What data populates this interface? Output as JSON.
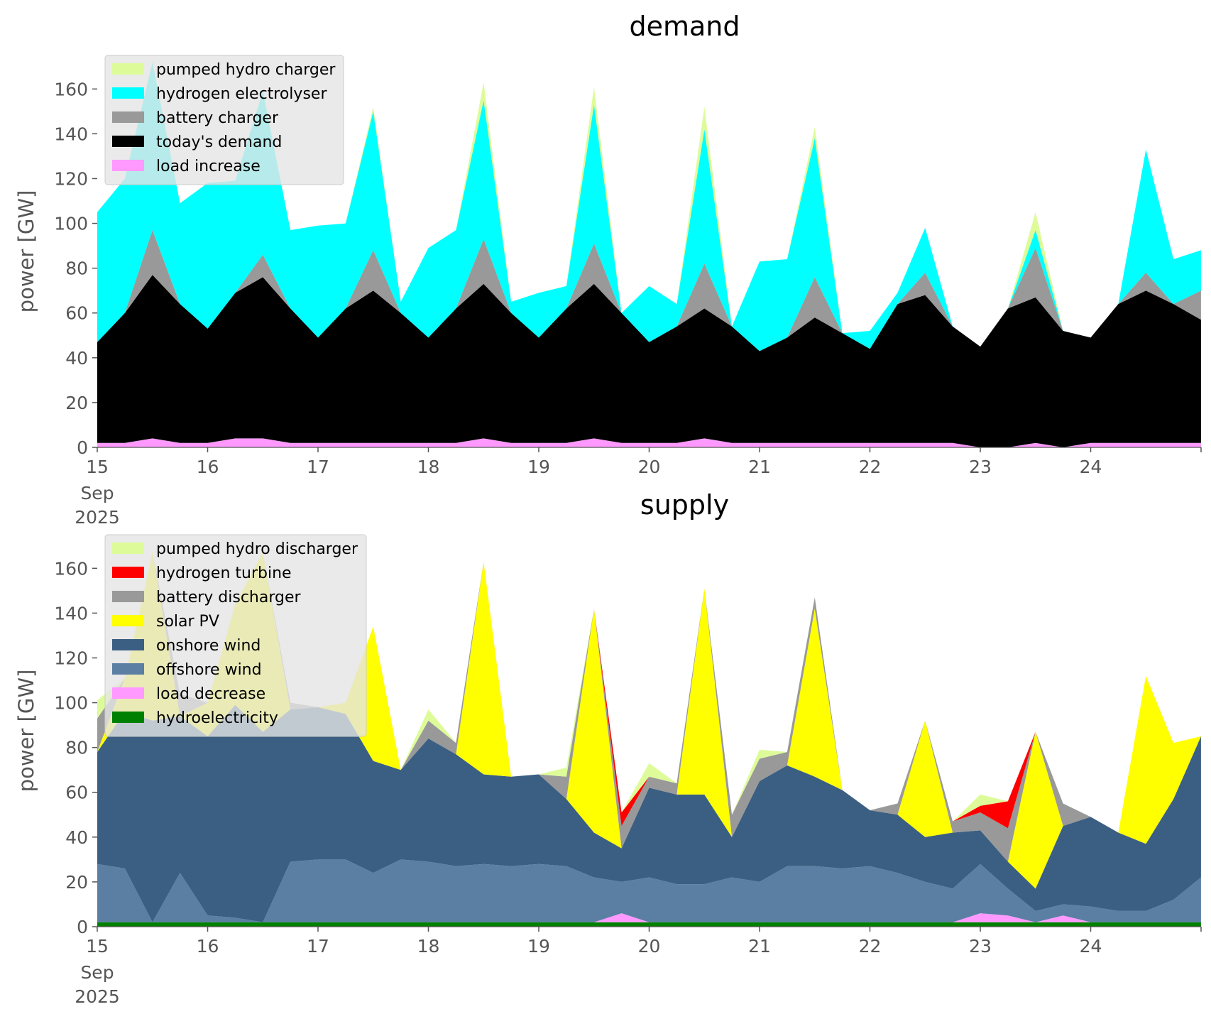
{
  "chart_data": [
    {
      "type": "area",
      "title": "demand",
      "ylabel": "power [GW]",
      "xlabel": "",
      "ylim": [
        0,
        175
      ],
      "xlim": [
        "2025-09-15 00:00",
        "2025-09-24 23:59"
      ],
      "grid": false,
      "legend_position": "top-left",
      "x_ticks": [
        "15",
        "16",
        "17",
        "18",
        "19",
        "20",
        "21",
        "22",
        "23",
        "24"
      ],
      "x_tick_sub": [
        "Sep",
        "2025"
      ],
      "y_ticks": [
        0,
        20,
        40,
        60,
        80,
        100,
        120,
        140,
        160
      ],
      "x": [
        "2025-09-15 00:00",
        "2025-09-15 06:00",
        "2025-09-15 12:00",
        "2025-09-15 18:00",
        "2025-09-16 00:00",
        "2025-09-16 06:00",
        "2025-09-16 12:00",
        "2025-09-16 18:00",
        "2025-09-17 00:00",
        "2025-09-17 06:00",
        "2025-09-17 12:00",
        "2025-09-17 18:00",
        "2025-09-18 00:00",
        "2025-09-18 06:00",
        "2025-09-18 12:00",
        "2025-09-18 18:00",
        "2025-09-19 00:00",
        "2025-09-19 06:00",
        "2025-09-19 12:00",
        "2025-09-19 18:00",
        "2025-09-20 00:00",
        "2025-09-20 06:00",
        "2025-09-20 12:00",
        "2025-09-20 18:00",
        "2025-09-21 00:00",
        "2025-09-21 06:00",
        "2025-09-21 12:00",
        "2025-09-21 18:00",
        "2025-09-22 00:00",
        "2025-09-22 06:00",
        "2025-09-22 12:00",
        "2025-09-22 18:00",
        "2025-09-23 00:00",
        "2025-09-23 06:00",
        "2025-09-23 12:00",
        "2025-09-23 18:00",
        "2025-09-24 00:00",
        "2025-09-24 06:00",
        "2025-09-24 12:00",
        "2025-09-24 18:00",
        "2025-09-24 23:59"
      ],
      "series": [
        {
          "name": "load increase",
          "color": "#ff99ff",
          "values": [
            2,
            2,
            4,
            2,
            2,
            4,
            4,
            2,
            2,
            2,
            2,
            2,
            2,
            2,
            4,
            2,
            2,
            2,
            4,
            2,
            2,
            2,
            4,
            2,
            2,
            2,
            2,
            2,
            2,
            2,
            2,
            2,
            0,
            0,
            2,
            0,
            2,
            2,
            2,
            2,
            2
          ]
        },
        {
          "name": "today's demand",
          "color": "#000000",
          "values": [
            45,
            58,
            73,
            62,
            51,
            65,
            72,
            60,
            47,
            60,
            68,
            58,
            47,
            60,
            69,
            58,
            47,
            60,
            69,
            58,
            45,
            52,
            58,
            52,
            41,
            47,
            56,
            49,
            42,
            62,
            66,
            52,
            45,
            62,
            65,
            52,
            47,
            62,
            68,
            62,
            55
          ]
        },
        {
          "name": "battery charger",
          "color": "#999999",
          "values": [
            0,
            0,
            20,
            0,
            0,
            0,
            10,
            0,
            0,
            0,
            18,
            0,
            0,
            0,
            20,
            0,
            0,
            0,
            18,
            0,
            0,
            0,
            20,
            0,
            0,
            0,
            18,
            0,
            0,
            0,
            10,
            0,
            0,
            0,
            22,
            0,
            0,
            0,
            8,
            0,
            13
          ]
        },
        {
          "name": "hydrogen electrolyser",
          "color": "#00ffff",
          "values": [
            58,
            60,
            75,
            45,
            65,
            50,
            73,
            35,
            50,
            38,
            62,
            5,
            40,
            35,
            62,
            5,
            20,
            10,
            62,
            0,
            25,
            10,
            60,
            0,
            40,
            35,
            62,
            0,
            8,
            5,
            20,
            0,
            0,
            0,
            8,
            0,
            0,
            0,
            55,
            20,
            18
          ]
        },
        {
          "name": "pumped hydro charger",
          "color": "#ddfc99",
          "values": [
            0,
            0,
            0,
            0,
            0,
            0,
            0,
            0,
            0,
            0,
            2,
            0,
            0,
            0,
            8,
            0,
            0,
            0,
            8,
            0,
            0,
            0,
            10,
            0,
            0,
            0,
            5,
            0,
            0,
            0,
            0,
            0,
            0,
            0,
            8,
            0,
            0,
            0,
            0,
            0,
            0
          ]
        }
      ]
    },
    {
      "type": "area",
      "title": "supply",
      "ylabel": "power [GW]",
      "xlabel": "",
      "ylim": [
        0,
        175
      ],
      "xlim": [
        "2025-09-15 00:00",
        "2025-09-24 23:59"
      ],
      "grid": false,
      "legend_position": "top-left",
      "x_ticks": [
        "15",
        "16",
        "17",
        "18",
        "19",
        "20",
        "21",
        "22",
        "23",
        "24"
      ],
      "x_tick_sub": [
        "Sep",
        "2025"
      ],
      "y_ticks": [
        0,
        20,
        40,
        60,
        80,
        100,
        120,
        140,
        160
      ],
      "x": [
        "2025-09-15 00:00",
        "2025-09-15 06:00",
        "2025-09-15 12:00",
        "2025-09-15 18:00",
        "2025-09-16 00:00",
        "2025-09-16 06:00",
        "2025-09-16 12:00",
        "2025-09-16 18:00",
        "2025-09-17 00:00",
        "2025-09-17 06:00",
        "2025-09-17 12:00",
        "2025-09-17 18:00",
        "2025-09-18 00:00",
        "2025-09-18 06:00",
        "2025-09-18 12:00",
        "2025-09-18 18:00",
        "2025-09-19 00:00",
        "2025-09-19 06:00",
        "2025-09-19 12:00",
        "2025-09-19 18:00",
        "2025-09-20 00:00",
        "2025-09-20 06:00",
        "2025-09-20 12:00",
        "2025-09-20 18:00",
        "2025-09-21 00:00",
        "2025-09-21 06:00",
        "2025-09-21 12:00",
        "2025-09-21 18:00",
        "2025-09-22 00:00",
        "2025-09-22 06:00",
        "2025-09-22 12:00",
        "2025-09-22 18:00",
        "2025-09-23 00:00",
        "2025-09-23 06:00",
        "2025-09-23 12:00",
        "2025-09-23 18:00",
        "2025-09-24 00:00",
        "2025-09-24 06:00",
        "2025-09-24 12:00",
        "2025-09-24 18:00",
        "2025-09-24 23:59"
      ],
      "series": [
        {
          "name": "hydroelectricity",
          "color": "#008000",
          "values": [
            2,
            2,
            2,
            2,
            2,
            2,
            2,
            2,
            2,
            2,
            2,
            2,
            2,
            2,
            2,
            2,
            2,
            2,
            2,
            2,
            2,
            2,
            2,
            2,
            2,
            2,
            2,
            2,
            2,
            2,
            2,
            2,
            2,
            2,
            2,
            2,
            2,
            2,
            2,
            2,
            2
          ]
        },
        {
          "name": "load decrease",
          "color": "#ff99ff",
          "values": [
            0,
            0,
            0,
            0,
            0,
            0,
            0,
            0,
            0,
            0,
            0,
            0,
            0,
            0,
            0,
            0,
            0,
            0,
            0,
            4,
            0,
            0,
            0,
            0,
            0,
            0,
            0,
            0,
            0,
            0,
            0,
            0,
            4,
            3,
            0,
            3,
            0,
            0,
            0,
            0,
            0
          ]
        },
        {
          "name": "offshore wind",
          "color": "#5b7fa3",
          "values": [
            26,
            24,
            0,
            22,
            3,
            2,
            0,
            27,
            28,
            28,
            22,
            28,
            27,
            25,
            26,
            25,
            26,
            25,
            20,
            14,
            20,
            17,
            17,
            20,
            18,
            25,
            25,
            24,
            25,
            22,
            18,
            15,
            22,
            12,
            5,
            5,
            7,
            5,
            5,
            10,
            20
          ]
        },
        {
          "name": "onshore wind",
          "color": "#3b5f82",
          "values": [
            50,
            70,
            90,
            70,
            80,
            95,
            85,
            68,
            68,
            65,
            50,
            40,
            55,
            50,
            40,
            40,
            40,
            30,
            20,
            15,
            40,
            40,
            40,
            18,
            45,
            45,
            40,
            35,
            25,
            26,
            20,
            25,
            15,
            12,
            10,
            35,
            40,
            35,
            30,
            45,
            63
          ]
        },
        {
          "name": "solar PV",
          "color": "#ffff00",
          "values": [
            0,
            15,
            75,
            0,
            15,
            45,
            80,
            0,
            0,
            5,
            60,
            0,
            0,
            0,
            95,
            0,
            0,
            0,
            100,
            0,
            0,
            0,
            92,
            0,
            0,
            0,
            75,
            0,
            0,
            0,
            52,
            0,
            0,
            0,
            70,
            0,
            0,
            0,
            75,
            25,
            0
          ]
        },
        {
          "name": "battery discharger",
          "color": "#999999",
          "values": [
            15,
            0,
            0,
            10,
            0,
            0,
            0,
            3,
            0,
            0,
            0,
            0,
            8,
            5,
            0,
            0,
            0,
            10,
            0,
            10,
            5,
            5,
            0,
            10,
            10,
            6,
            5,
            0,
            0,
            5,
            0,
            5,
            8,
            15,
            0,
            10,
            0,
            0,
            0,
            0,
            0
          ]
        },
        {
          "name": "hydrogen turbine",
          "color": "#ff0000",
          "values": [
            0,
            0,
            0,
            0,
            0,
            0,
            0,
            0,
            0,
            0,
            0,
            0,
            0,
            0,
            0,
            0,
            0,
            0,
            0,
            6,
            0,
            0,
            0,
            0,
            0,
            0,
            0,
            0,
            0,
            0,
            0,
            0,
            3,
            12,
            0,
            0,
            0,
            0,
            0,
            0,
            0
          ]
        },
        {
          "name": "pumped hydro discharger",
          "color": "#ddfc99",
          "values": [
            8,
            0,
            0,
            0,
            0,
            0,
            0,
            0,
            0,
            0,
            0,
            0,
            5,
            0,
            0,
            0,
            0,
            4,
            0,
            0,
            6,
            0,
            0,
            0,
            4,
            0,
            0,
            0,
            0,
            0,
            0,
            0,
            5,
            0,
            0,
            0,
            0,
            0,
            0,
            0,
            0
          ]
        }
      ]
    }
  ]
}
